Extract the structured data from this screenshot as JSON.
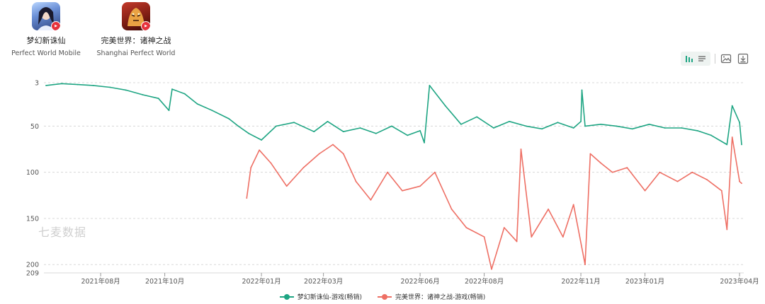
{
  "apps": [
    {
      "name": "梦幻新诛仙",
      "developer": "Perfect World Mobile",
      "icon": "fantasy-heroine-app-icon"
    },
    {
      "name": "完美世界：诸神之战",
      "developer": "Shanghai Perfect World",
      "icon": "tiger-warrior-app-icon"
    }
  ],
  "watermark": "七麦数据",
  "toolbar": {
    "icons": [
      "line-chart-toggle-icon",
      "list-toggle-icon",
      "save-image-icon",
      "download-icon"
    ]
  },
  "colors": {
    "series1": "#1ea583",
    "series2": "#ee6f64",
    "grid": "#d8d8d8",
    "axis_text": "#555555"
  },
  "chart_data": {
    "type": "line",
    "y_inverted": true,
    "ylim": [
      209,
      3
    ],
    "yticks": [
      3,
      50,
      100,
      150,
      200,
      209
    ],
    "x_range": [
      "2021-06-08",
      "2023-04-05"
    ],
    "xticks": [
      {
        "date": "2021-08-01",
        "label": "2021年08月"
      },
      {
        "date": "2021-10-01",
        "label": "2021年10月"
      },
      {
        "date": "2022-01-01",
        "label": "2022年01月"
      },
      {
        "date": "2022-03-01",
        "label": "2022年03月"
      },
      {
        "date": "2022-06-01",
        "label": "2022年06月"
      },
      {
        "date": "2022-08-01",
        "label": "2022年08月"
      },
      {
        "date": "2022-11-01",
        "label": "2022年11月"
      },
      {
        "date": "2023-01-01",
        "label": "2023年01月"
      },
      {
        "date": "2023-04-01",
        "label": "2023年04月"
      }
    ],
    "grid": "horizontal-dashed",
    "legend_position": "bottom-center",
    "series": [
      {
        "name": "梦幻新诛仙-游戏(畅销)",
        "color": "#1ea583",
        "points": [
          [
            "2021-06-10",
            6
          ],
          [
            "2021-06-25",
            4
          ],
          [
            "2021-07-10",
            5
          ],
          [
            "2021-07-25",
            6
          ],
          [
            "2021-08-10",
            8
          ],
          [
            "2021-08-25",
            11
          ],
          [
            "2021-09-10",
            16
          ],
          [
            "2021-09-25",
            20
          ],
          [
            "2021-10-05",
            33
          ],
          [
            "2021-10-08",
            10
          ],
          [
            "2021-10-20",
            15
          ],
          [
            "2021-11-01",
            26
          ],
          [
            "2021-11-15",
            33
          ],
          [
            "2021-12-01",
            42
          ],
          [
            "2021-12-10",
            50
          ],
          [
            "2021-12-20",
            58
          ],
          [
            "2022-01-01",
            65
          ],
          [
            "2022-01-15",
            50
          ],
          [
            "2022-02-01",
            46
          ],
          [
            "2022-02-20",
            56
          ],
          [
            "2022-03-05",
            45
          ],
          [
            "2022-03-20",
            56
          ],
          [
            "2022-04-05",
            52
          ],
          [
            "2022-04-20",
            58
          ],
          [
            "2022-05-05",
            50
          ],
          [
            "2022-05-20",
            60
          ],
          [
            "2022-06-01",
            55
          ],
          [
            "2022-06-05",
            68
          ],
          [
            "2022-06-10",
            6
          ],
          [
            "2022-06-25",
            28
          ],
          [
            "2022-07-10",
            48
          ],
          [
            "2022-07-25",
            40
          ],
          [
            "2022-08-10",
            52
          ],
          [
            "2022-08-25",
            45
          ],
          [
            "2022-09-10",
            50
          ],
          [
            "2022-09-25",
            53
          ],
          [
            "2022-10-10",
            46
          ],
          [
            "2022-10-25",
            52
          ],
          [
            "2022-11-01",
            45
          ],
          [
            "2022-11-02",
            11
          ],
          [
            "2022-11-05",
            50
          ],
          [
            "2022-11-20",
            48
          ],
          [
            "2022-12-05",
            50
          ],
          [
            "2022-12-20",
            53
          ],
          [
            "2023-01-05",
            48
          ],
          [
            "2023-01-20",
            52
          ],
          [
            "2023-02-05",
            52
          ],
          [
            "2023-02-20",
            55
          ],
          [
            "2023-03-05",
            60
          ],
          [
            "2023-03-20",
            70
          ],
          [
            "2023-03-25",
            28
          ],
          [
            "2023-04-01",
            46
          ],
          [
            "2023-04-03",
            70
          ]
        ]
      },
      {
        "name": "完美世界：诸神之战-游戏(畅销)",
        "color": "#ee6f64",
        "points": [
          [
            "2021-12-18",
            128
          ],
          [
            "2021-12-22",
            95
          ],
          [
            "2021-12-30",
            76
          ],
          [
            "2022-01-10",
            90
          ],
          [
            "2022-01-25",
            115
          ],
          [
            "2022-02-10",
            95
          ],
          [
            "2022-02-25",
            80
          ],
          [
            "2022-03-10",
            70
          ],
          [
            "2022-03-20",
            80
          ],
          [
            "2022-04-01",
            110
          ],
          [
            "2022-04-15",
            130
          ],
          [
            "2022-05-01",
            100
          ],
          [
            "2022-05-15",
            120
          ],
          [
            "2022-06-01",
            115
          ],
          [
            "2022-06-15",
            100
          ],
          [
            "2022-07-01",
            140
          ],
          [
            "2022-07-15",
            160
          ],
          [
            "2022-08-01",
            170
          ],
          [
            "2022-08-08",
            205
          ],
          [
            "2022-08-20",
            160
          ],
          [
            "2022-09-01",
            175
          ],
          [
            "2022-09-05",
            75
          ],
          [
            "2022-09-15",
            170
          ],
          [
            "2022-10-01",
            140
          ],
          [
            "2022-10-15",
            170
          ],
          [
            "2022-10-25",
            135
          ],
          [
            "2022-11-05",
            200
          ],
          [
            "2022-11-10",
            80
          ],
          [
            "2022-11-20",
            90
          ],
          [
            "2022-12-01",
            100
          ],
          [
            "2022-12-15",
            95
          ],
          [
            "2023-01-01",
            120
          ],
          [
            "2023-01-15",
            100
          ],
          [
            "2023-02-01",
            110
          ],
          [
            "2023-02-15",
            100
          ],
          [
            "2023-03-01",
            108
          ],
          [
            "2023-03-15",
            120
          ],
          [
            "2023-03-20",
            162
          ],
          [
            "2023-03-25",
            62
          ],
          [
            "2023-04-01",
            110
          ],
          [
            "2023-04-03",
            112
          ]
        ]
      }
    ]
  }
}
